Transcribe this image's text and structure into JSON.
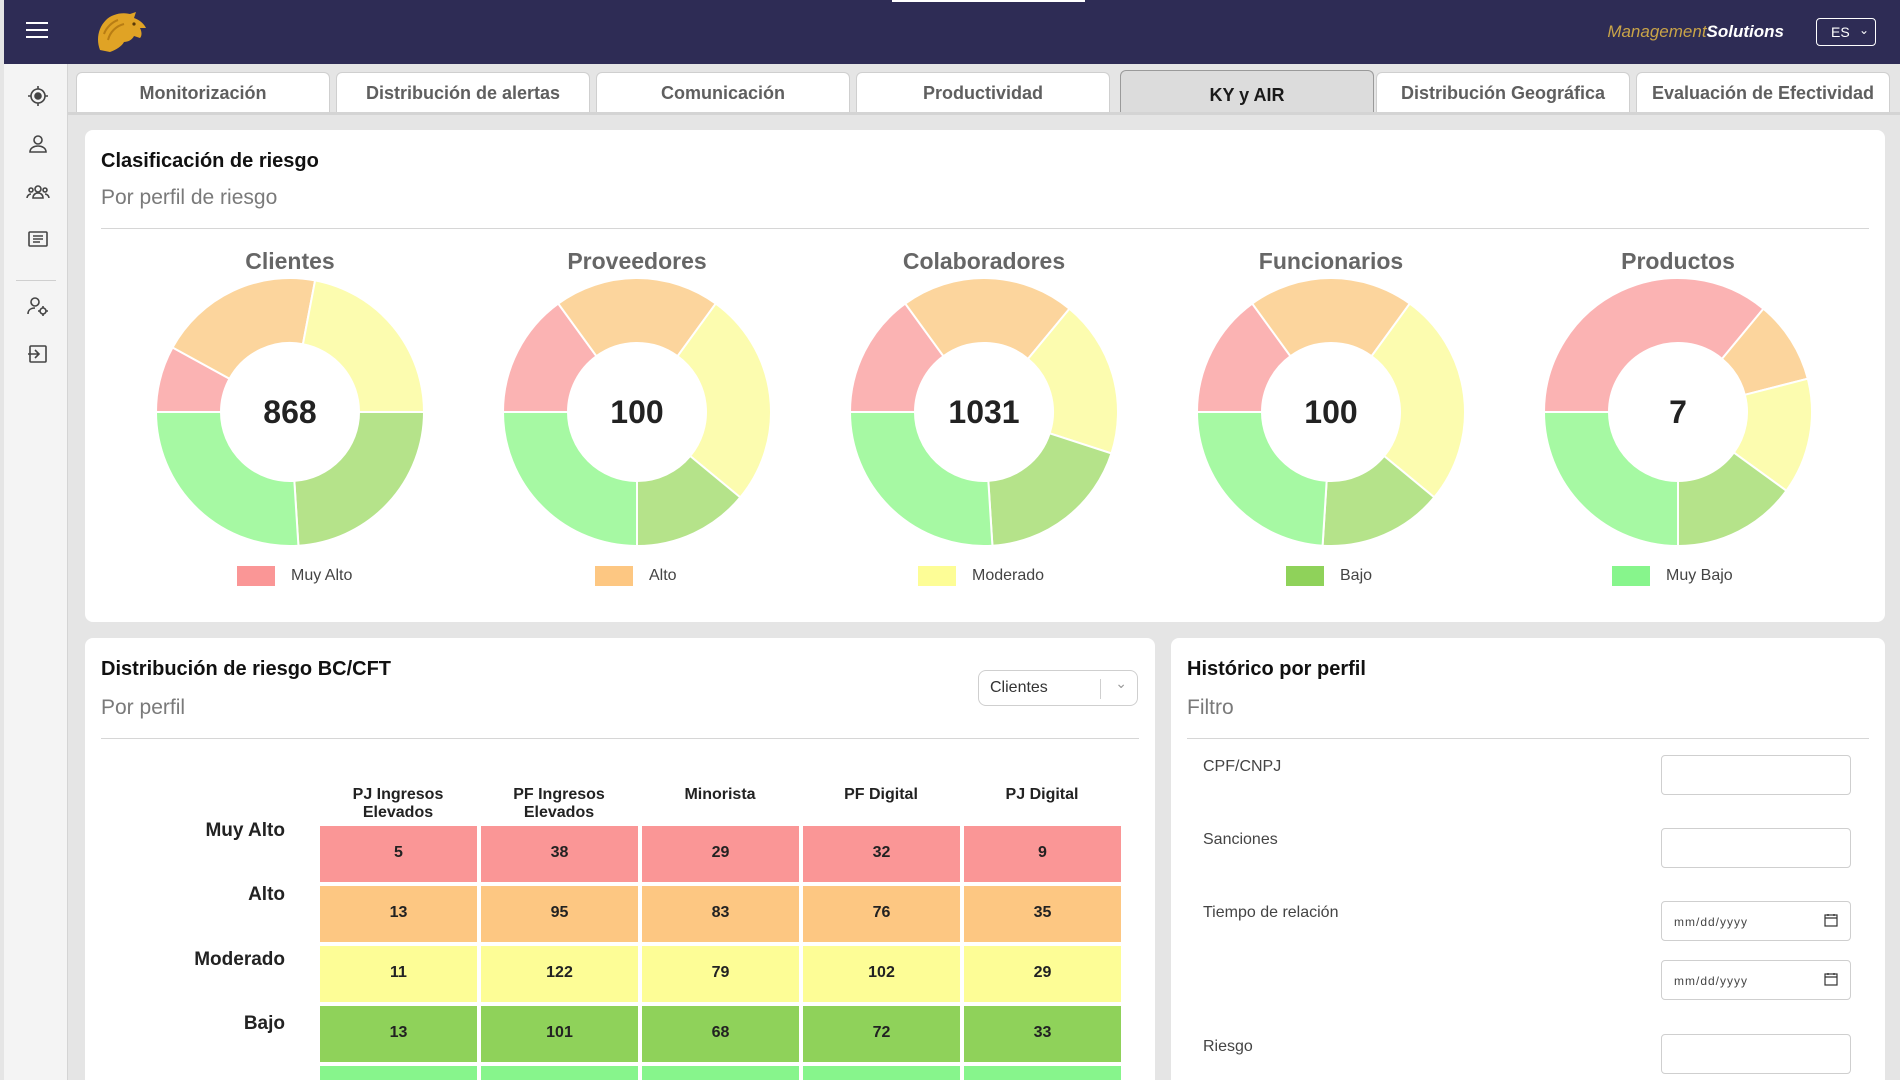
{
  "header": {
    "brand_part1": "Management",
    "brand_part2": "Solutions",
    "language": "ES"
  },
  "tabs": [
    {
      "label": "Monitorización"
    },
    {
      "label": "Distribución de alertas"
    },
    {
      "label": "Comunicación"
    },
    {
      "label": "Productividad"
    },
    {
      "label": "KY y AIR"
    },
    {
      "label": "Distribución Geográfica"
    },
    {
      "label": "Evaluación de Efectividad"
    }
  ],
  "active_tab": "KY y AIR",
  "risk_card": {
    "title": "Clasificación de riesgo",
    "subtitle": "Por perfil de riesgo",
    "donuts": [
      {
        "title": "Clientes",
        "total": "868",
        "shares": [
          0.08,
          0.2,
          0.22,
          0.24,
          0.26
        ]
      },
      {
        "title": "Proveedores",
        "total": "100",
        "shares": [
          0.15,
          0.2,
          0.26,
          0.14,
          0.25
        ]
      },
      {
        "title": "Colaboradores",
        "total": "1031",
        "shares": [
          0.15,
          0.21,
          0.19,
          0.19,
          0.26
        ]
      },
      {
        "title": "Funcionarios",
        "total": "100",
        "shares": [
          0.15,
          0.2,
          0.26,
          0.15,
          0.24
        ]
      },
      {
        "title": "Productos",
        "total": "7",
        "shares": [
          0.36,
          0.1,
          0.14,
          0.15,
          0.25
        ]
      }
    ],
    "legend": [
      {
        "label": "Muy Alto",
        "color": "#fa9696"
      },
      {
        "label": "Alto",
        "color": "#fdc782"
      },
      {
        "label": "Moderado",
        "color": "#fdfd96"
      },
      {
        "label": "Bajo",
        "color": "#8fd25a"
      },
      {
        "label": "Muy Bajo",
        "color": "#87f58c"
      }
    ],
    "slice_colors": [
      "#fbb3b3",
      "#fcd59d",
      "#fcfcaf",
      "#b5e38a",
      "#a6f9a3"
    ]
  },
  "distribution_card": {
    "title": "Distribución de riesgo BC/CFT",
    "subtitle": "Por perfil",
    "select_value": "Clientes",
    "columns": [
      "PJ Ingresos Elevados",
      "PF Ingresos Elevados",
      "Minorista",
      "PF Digital",
      "PJ Digital"
    ],
    "rows": [
      {
        "label": "Muy Alto",
        "color": "#fa9696",
        "values": [
          "5",
          "38",
          "29",
          "32",
          "9"
        ]
      },
      {
        "label": "Alto",
        "color": "#fdc782",
        "values": [
          "13",
          "95",
          "83",
          "76",
          "35"
        ]
      },
      {
        "label": "Moderado",
        "color": "#fdfd96",
        "values": [
          "11",
          "122",
          "79",
          "102",
          "29"
        ]
      },
      {
        "label": "Bajo",
        "color": "#8fd25a",
        "values": [
          "13",
          "101",
          "68",
          "72",
          "33"
        ]
      }
    ],
    "partial_row_color": "#87f58c"
  },
  "history_card": {
    "title": "Histórico por perfil",
    "subtitle": "Filtro",
    "fields": {
      "cpf_label": "CPF/CNPJ",
      "sanciones_label": "Sanciones",
      "tiempo_label": "Tiempo de relación",
      "date_placeholder": "mm/dd/yyyy",
      "riesgo_label": "Riesgo"
    }
  }
}
